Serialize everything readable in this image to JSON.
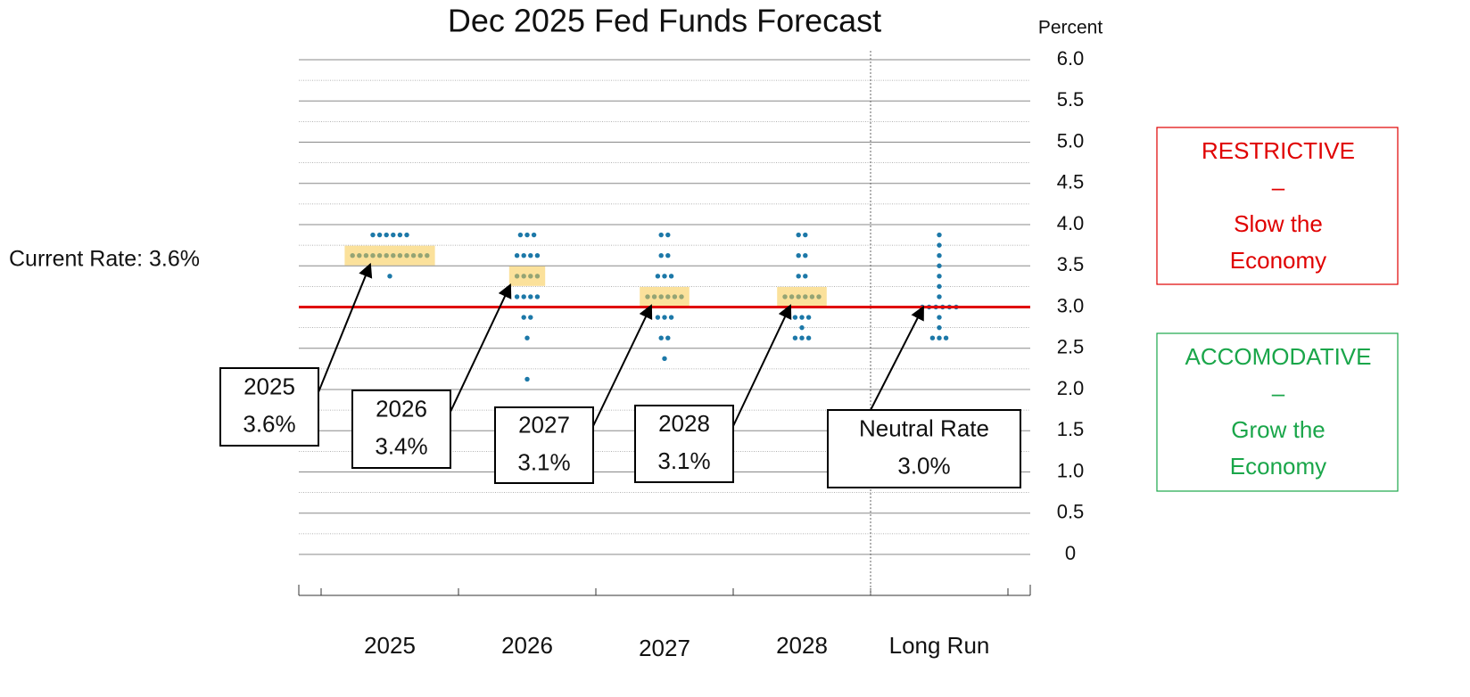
{
  "chart_data": {
    "type": "dotplot",
    "title": "Dec 2025 Fed Funds Forecast",
    "y_axis_label": "Percent",
    "categories": [
      "2025",
      "2026",
      "2027",
      "2028",
      "Long Run"
    ],
    "dots": [
      [
        {
          "value": 3.875,
          "count": 6
        },
        {
          "value": 3.625,
          "count": 12
        },
        {
          "value": 3.375,
          "count": 1
        }
      ],
      [
        {
          "value": 3.875,
          "count": 3
        },
        {
          "value": 3.625,
          "count": 4
        },
        {
          "value": 3.375,
          "count": 4
        },
        {
          "value": 3.125,
          "count": 4
        },
        {
          "value": 2.875,
          "count": 2
        },
        {
          "value": 2.625,
          "count": 1
        },
        {
          "value": 2.125,
          "count": 1
        }
      ],
      [
        {
          "value": 3.875,
          "count": 2
        },
        {
          "value": 3.625,
          "count": 2
        },
        {
          "value": 3.375,
          "count": 3
        },
        {
          "value": 3.125,
          "count": 6
        },
        {
          "value": 2.875,
          "count": 3
        },
        {
          "value": 2.625,
          "count": 2
        },
        {
          "value": 2.375,
          "count": 1
        }
      ],
      [
        {
          "value": 3.875,
          "count": 2
        },
        {
          "value": 3.625,
          "count": 2
        },
        {
          "value": 3.375,
          "count": 2
        },
        {
          "value": 3.125,
          "count": 6
        },
        {
          "value": 2.875,
          "count": 3
        },
        {
          "value": 2.75,
          "count": 1
        },
        {
          "value": 2.625,
          "count": 3
        }
      ],
      [
        {
          "value": 3.875,
          "count": 1
        },
        {
          "value": 3.75,
          "count": 1
        },
        {
          "value": 3.625,
          "count": 1
        },
        {
          "value": 3.5,
          "count": 1
        },
        {
          "value": 3.375,
          "count": 1
        },
        {
          "value": 3.25,
          "count": 1
        },
        {
          "value": 3.125,
          "count": 1
        },
        {
          "value": 3.0,
          "count": 6
        },
        {
          "value": 2.875,
          "count": 1
        },
        {
          "value": 2.75,
          "count": 1
        },
        {
          "value": 2.625,
          "count": 3
        }
      ]
    ],
    "dot_color": "#1c78a8",
    "medians": [
      3.625,
      3.375,
      3.125,
      3.125
    ],
    "median_highlight_color": "#f7c948",
    "neutral_line": 3.0,
    "neutral_line_color": "#e00000",
    "annotations": [
      {
        "lines": [
          "2025",
          "3.6%"
        ],
        "value": 3.625
      },
      {
        "lines": [
          "2026",
          "3.4%"
        ],
        "value": 3.375
      },
      {
        "lines": [
          "2027",
          "3.1%"
        ],
        "value": 3.125
      },
      {
        "lines": [
          "2028",
          "3.1%"
        ],
        "value": 3.125
      },
      {
        "lines": [
          "Neutral Rate",
          "3.0%"
        ],
        "value": 3.0
      }
    ],
    "current_rate_label": "Current Rate: 3.6%",
    "side_boxes": [
      {
        "lines": [
          "RESTRICTIVE",
          "–",
          "Slow the",
          "Economy"
        ],
        "color": "#e00000"
      },
      {
        "lines": [
          "ACCOMODATIVE",
          "–",
          "Grow the",
          "Economy"
        ],
        "color": "#1aa64a"
      }
    ],
    "ylim": [
      0,
      6
    ],
    "yticks": [
      0,
      0.5,
      {
        "value": 1,
        "label": "1.0"
      },
      1.5,
      {
        "value": 2,
        "label": "2.0"
      },
      2.5,
      {
        "value": 3,
        "label": "3.0"
      },
      3.5,
      {
        "value": 4,
        "label": "4.0"
      },
      4.5,
      {
        "value": 5,
        "label": "5.0"
      },
      5.5,
      {
        "value": 6,
        "label": "6.0"
      }
    ],
    "minor_yticks": [
      0.25,
      0.75,
      1.25,
      1.75,
      2.25,
      2.75,
      3.25,
      3.75,
      4.25,
      4.75,
      5.25,
      5.75
    ],
    "grid": true
  }
}
